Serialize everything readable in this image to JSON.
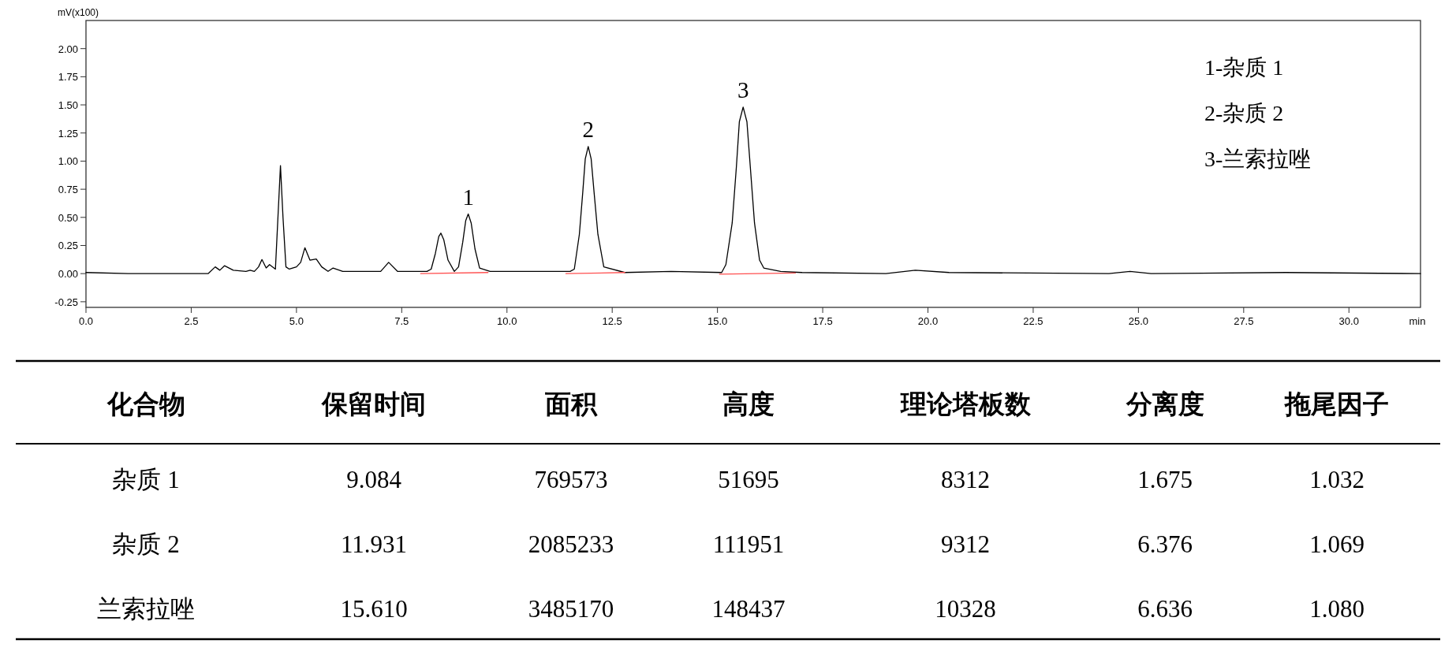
{
  "chart_data": [
    {
      "type": "line",
      "ylabel": "mV(x100)",
      "xlabel": "min",
      "xlim": [
        0,
        31.7
      ],
      "ylim": [
        -0.3,
        2.25
      ],
      "xticks": [
        {
          "value": 0,
          "label": "0.0"
        },
        2.5,
        {
          "value": 5,
          "label": "5.0"
        },
        7.5,
        {
          "value": 10,
          "label": "10.0"
        },
        12.5,
        {
          "value": 15,
          "label": "15.0"
        },
        17.5,
        {
          "value": 20,
          "label": "20.0"
        },
        22.5,
        {
          "value": 25,
          "label": "25.0"
        },
        27.5,
        {
          "value": 30,
          "label": "30.0"
        }
      ],
      "yticks": [
        {
          "value": -0.25,
          "label": "-0.25"
        },
        {
          "value": 0,
          "label": "0.00"
        },
        {
          "value": 0.25,
          "label": "0.25"
        },
        {
          "value": 0.5,
          "label": "0.50"
        },
        {
          "value": 0.75,
          "label": "0.75"
        },
        {
          "value": 1,
          "label": "1.00"
        },
        {
          "value": 1.25,
          "label": "1.25"
        },
        {
          "value": 1.5,
          "label": "1.50"
        },
        {
          "value": 1.75,
          "label": "1.75"
        },
        {
          "value": 2,
          "label": "2.00"
        }
      ],
      "marker": "none",
      "series": [
        {
          "color": "#000000",
          "line_style": "solid",
          "x": [
            0,
            1,
            2.9,
            3.07,
            3.18,
            3.29,
            3.5,
            3.8,
            3.9,
            4.0,
            4.1,
            4.18,
            4.28,
            4.36,
            4.5,
            4.56,
            4.62,
            4.68,
            4.75,
            4.83,
            5.0,
            5.1,
            5.2,
            5.32,
            5.47,
            5.6,
            5.75,
            5.87,
            6.1,
            7.0,
            7.19,
            7.4,
            8.1,
            8.2,
            8.3,
            8.38,
            8.43,
            8.5,
            8.6,
            8.75,
            8.85,
            8.95,
            9.02,
            9.08,
            9.15,
            9.24,
            9.35,
            9.6,
            11.5,
            11.6,
            11.72,
            11.8,
            11.86,
            11.93,
            12.0,
            12.07,
            12.16,
            12.3,
            12.8,
            13.9,
            15.1,
            15.2,
            15.35,
            15.45,
            15.52,
            15.61,
            15.7,
            15.78,
            15.88,
            16.0,
            16.1,
            16.5,
            17.0,
            19.0,
            19.7,
            20.5,
            24.3,
            24.8,
            25.3,
            28.5,
            31.7
          ],
          "values": [
            0.01,
            0.0,
            0.0,
            0.06,
            0.03,
            0.07,
            0.03,
            0.02,
            0.03,
            0.02,
            0.06,
            0.125,
            0.05,
            0.08,
            0.04,
            0.5,
            0.96,
            0.5,
            0.06,
            0.04,
            0.06,
            0.1,
            0.23,
            0.12,
            0.13,
            0.06,
            0.02,
            0.05,
            0.02,
            0.02,
            0.1,
            0.02,
            0.02,
            0.04,
            0.18,
            0.33,
            0.36,
            0.3,
            0.12,
            0.02,
            0.06,
            0.28,
            0.47,
            0.53,
            0.45,
            0.22,
            0.05,
            0.02,
            0.02,
            0.04,
            0.35,
            0.72,
            1.02,
            1.13,
            1.02,
            0.72,
            0.35,
            0.06,
            0.01,
            0.02,
            0.01,
            0.08,
            0.45,
            0.95,
            1.35,
            1.48,
            1.35,
            0.95,
            0.45,
            0.12,
            0.05,
            0.02,
            0.01,
            0.0,
            0.03,
            0.01,
            0.0,
            0.02,
            0.0,
            0.01,
            0.0
          ]
        },
        {
          "color": "#ff5050",
          "line_style": "solid",
          "x": [
            7.95,
            9.55
          ],
          "values": [
            0.0,
            0.01
          ]
        },
        {
          "color": "#ff5050",
          "line_style": "solid",
          "x": [
            11.4,
            12.8
          ],
          "values": [
            0.0,
            0.01
          ]
        },
        {
          "color": "#ff5050",
          "line_style": "solid",
          "x": [
            15.05,
            16.85
          ],
          "values": [
            -0.005,
            0.005
          ]
        }
      ],
      "annotations": [
        {
          "text": "1",
          "x": 9.08,
          "y": 0.53
        },
        {
          "text": "2",
          "x": 11.93,
          "y": 1.13
        },
        {
          "text": "3",
          "x": 15.61,
          "y": 1.48
        },
        "1-杂质 1",
        "2-杂质 2",
        "3-兰索拉唑"
      ]
    },
    {
      "type": "other",
      "categories": [
        "化合物",
        "保留时间",
        "面积",
        "高度",
        "理论塔板数",
        "分离度",
        "拖尾因子"
      ],
      "y_categories": [
        "杂质 1",
        "杂质 2",
        "兰索拉唑"
      ],
      "cell_labels": [
        [
          "9.084",
          "769573",
          "51695",
          "8312",
          "1.675",
          "1.032"
        ],
        [
          "11.931",
          "2085233",
          "111951",
          "9312",
          "6.376",
          "1.069"
        ],
        [
          "15.610",
          "3485170",
          "148437",
          "10328",
          "6.636",
          "1.080"
        ]
      ]
    }
  ]
}
